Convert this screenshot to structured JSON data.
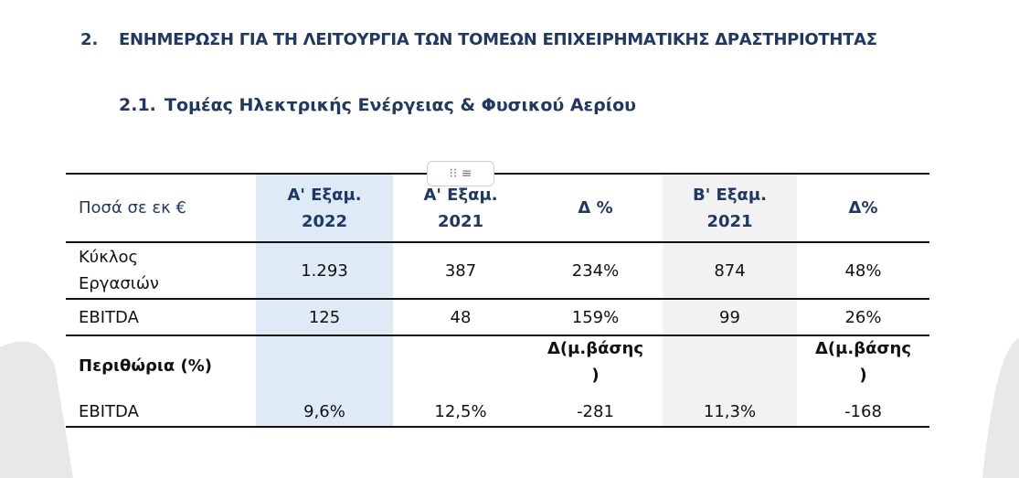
{
  "heading": {
    "number": "2.",
    "text": "ΕΝΗΜΕΡΩΣΗ ΓΙΑ ΤΗ ΛΕΙΤΟΥΡΓΙΑ ΤΩΝ ΤΟΜΕΩΝ ΕΠΙΧΕΙΡΗΜΑΤΙΚΗΣ ΔΡΑΣΤΗΡΙΟΤΗΤΑΣ"
  },
  "subheading": {
    "number": "2.1.",
    "text": "Τομέας Ηλεκτρικής Ενέργειας & Φυσικού Αερίου"
  },
  "table": {
    "rows": [
      [
        [
          "Ποσά σε εκ €"
        ],
        [
          "Α' Εξαμ.",
          "2022"
        ],
        [
          "Α' Εξαμ.",
          "2021"
        ],
        [
          "Δ %"
        ],
        [
          "Β' Εξαμ.",
          "2021"
        ],
        [
          "Δ%"
        ]
      ],
      [
        [
          "Κύκλος",
          "Εργασιών"
        ],
        [
          "1.293"
        ],
        [
          "387"
        ],
        [
          "234%"
        ],
        [
          "874"
        ],
        [
          "48%"
        ]
      ],
      [
        [
          "EBITDA"
        ],
        [
          "125"
        ],
        [
          "48"
        ],
        [
          "159%"
        ],
        [
          "99"
        ],
        [
          "26%"
        ]
      ],
      [
        [
          "Περιθώρια (%)"
        ],
        [],
        [],
        [
          "Δ(μ.βάσης",
          ")"
        ],
        [],
        [
          "Δ(μ.βάσης",
          ")"
        ]
      ],
      [
        [
          "EBITDA"
        ],
        [
          "9,6%"
        ],
        [
          "12,5%"
        ],
        [
          "-281"
        ],
        [
          "11,3%"
        ],
        [
          "-168"
        ]
      ]
    ]
  }
}
